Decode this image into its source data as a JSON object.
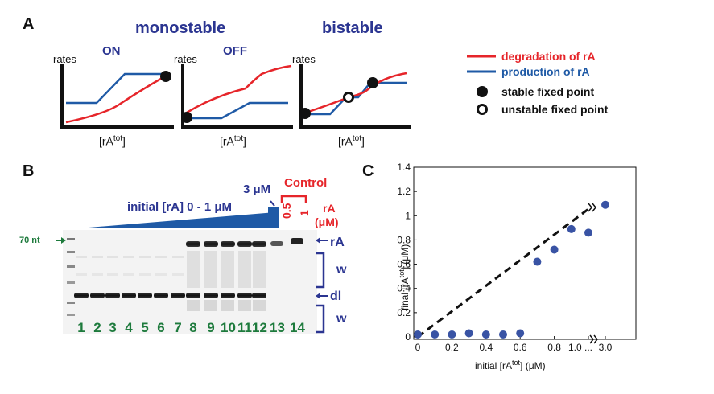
{
  "panelA": {
    "label": "A",
    "monostable": "monostable",
    "bistable": "bistable",
    "on": "ON",
    "off": "OFF",
    "rates": "rates",
    "xlabel_base": "[rA",
    "xlabel_sup": "tot",
    "xlabel_end": "]",
    "legend": {
      "degradation": "degradation of rA",
      "production": "production of rA",
      "stable": "stable fixed point",
      "unstable": "unstable fixed point"
    },
    "colors": {
      "degradation": "#e6252a",
      "production": "#1f5aa6"
    }
  },
  "panelB": {
    "label": "B",
    "marker": "70 nt",
    "initial_label": "initial [rA] 0 - 1 μM",
    "three_um": "3 μM",
    "control": "Control",
    "control_values": [
      "0.5",
      "1"
    ],
    "rA_label": "rA",
    "um_label": "(μM)",
    "band_rA": "rA",
    "band_dl": "dl",
    "band_w1": "w",
    "band_w2": "w",
    "lanes": [
      "1",
      "2",
      "3",
      "4",
      "5",
      "6",
      "7",
      "8",
      "9",
      "10",
      "11",
      "12",
      "13",
      "14"
    ]
  },
  "panelC": {
    "label": "C",
    "chart_data": {
      "type": "scatter",
      "xlabel": "initial [rA^tot] (μM)",
      "ylabel": "final [rA^tot] (μM)",
      "x_tick_labels": [
        "0",
        "0.2",
        "0.4",
        "0.6",
        "0.8",
        "1.0 ...",
        "3.0"
      ],
      "y_tick_labels": [
        "0",
        "0.2",
        "0.4",
        "0.6",
        "0.8",
        "1",
        "1.2",
        "1.4"
      ],
      "ylim": [
        0,
        1.4
      ],
      "series": [
        {
          "x": [
            0,
            0.1,
            0.2,
            0.3,
            0.4,
            0.5,
            0.6,
            0.7,
            0.8,
            0.9,
            1.0,
            3.0
          ],
          "y": [
            0.02,
            0.02,
            0.02,
            0.03,
            0.02,
            0.02,
            0.03,
            0.62,
            0.72,
            0.89,
            0.86,
            1.09
          ]
        }
      ],
      "reference_line": "y = x (dashed)"
    },
    "xlabel_base": "initial [rA",
    "xlabel_sup": "tot",
    "xlabel_end": "] (μM)",
    "ylabel_base": "final [rA",
    "ylabel_sup": "tot",
    "ylabel_end": "] (μM)",
    "point_color": "#3953a4"
  }
}
